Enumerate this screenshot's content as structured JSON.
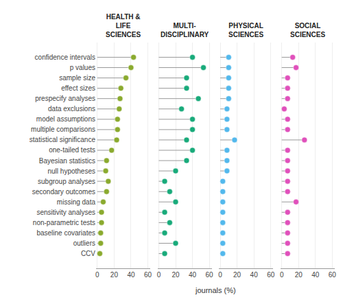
{
  "chart_data": {
    "type": "lollipop",
    "orientation": "horizontal",
    "categories": [
      "confidence intervals",
      "p values",
      "sample size",
      "effect sizes",
      "prespecify analyses",
      "data exclusions",
      "model assumptions",
      "multiple comparisons",
      "statistical significance",
      "one-tailed tests",
      "Bayesian statistics",
      "null hypotheses",
      "subgroup analyses",
      "secondary outcomes",
      "missing data",
      "sensitivity analyses",
      "non-parametric tests",
      "baseline covariates",
      "outliers",
      "CCV"
    ],
    "series": [
      {
        "name": "HEALTH &\nLIFE\nSCIENCES",
        "color": "#8aaa2e",
        "values": [
          43,
          40,
          34,
          28,
          27,
          26,
          24,
          24,
          23,
          17,
          11,
          10,
          13,
          11,
          7,
          5,
          5,
          4,
          4,
          3
        ]
      },
      {
        "name": "MULTI-\nDISCIPLINARY",
        "color": "#18aa7a",
        "values": [
          40,
          53,
          33,
          33,
          47,
          27,
          40,
          40,
          33,
          40,
          33,
          20,
          7,
          13,
          20,
          7,
          13,
          7,
          20,
          7
        ]
      },
      {
        "name": "PHYSICAL\nSCIENCES",
        "color": "#52b8ec",
        "values": [
          10,
          10,
          10,
          10,
          10,
          8,
          8,
          8,
          17,
          8,
          8,
          8,
          3,
          3,
          3,
          3,
          3,
          3,
          3,
          3
        ]
      },
      {
        "name": "SOCIAL\nSCIENCES",
        "color": "#e050bb",
        "values": [
          13,
          17,
          7,
          7,
          7,
          3,
          7,
          7,
          27,
          7,
          7,
          7,
          7,
          7,
          17,
          7,
          7,
          7,
          7,
          7
        ]
      }
    ],
    "xlabel": "journals (%)",
    "xlim": [
      -1.5,
      63
    ],
    "xticks": [
      0,
      20,
      40,
      60
    ],
    "grid": true
  }
}
